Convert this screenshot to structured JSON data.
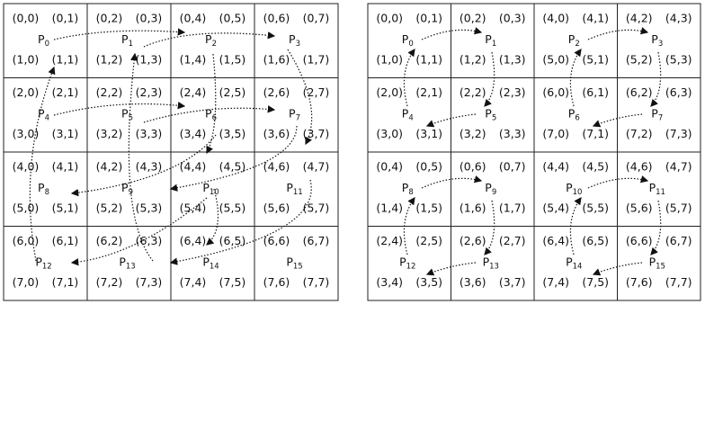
{
  "grids": [
    {
      "cells": [
        {
          "top": [
            "(0,0)",
            "(0,1)"
          ],
          "p": "P",
          "sub": "0",
          "bottom": [
            "(1,0)",
            "(1,1)"
          ]
        },
        {
          "top": [
            "(0,2)",
            "(0,3)"
          ],
          "p": "P",
          "sub": "1",
          "bottom": [
            "(1,2)",
            "(1,3)"
          ]
        },
        {
          "top": [
            "(0,4)",
            "(0,5)"
          ],
          "p": "P",
          "sub": "2",
          "bottom": [
            "(1,4)",
            "(1,5)"
          ]
        },
        {
          "top": [
            "(0,6)",
            "(0,7)"
          ],
          "p": "P",
          "sub": "3",
          "bottom": [
            "(1,6)",
            "(1,7)"
          ]
        },
        {
          "top": [
            "(2,0)",
            "(2,1)"
          ],
          "p": "P",
          "sub": "4",
          "bottom": [
            "(3,0)",
            "(3,1)"
          ]
        },
        {
          "top": [
            "(2,2)",
            "(2,3)"
          ],
          "p": "P",
          "sub": "5",
          "bottom": [
            "(3,2)",
            "(3,3)"
          ]
        },
        {
          "top": [
            "(2,4)",
            "(2,5)"
          ],
          "p": "P",
          "sub": "6",
          "bottom": [
            "(3,4)",
            "(3,5)"
          ]
        },
        {
          "top": [
            "(2,6)",
            "(2,7)"
          ],
          "p": "P",
          "sub": "7",
          "bottom": [
            "(3,6)",
            "(3,7)"
          ]
        },
        {
          "top": [
            "(4,0)",
            "(4,1)"
          ],
          "p": "P",
          "sub": "8",
          "bottom": [
            "(5,0)",
            "(5,1)"
          ]
        },
        {
          "top": [
            "(4,2)",
            "(4,3)"
          ],
          "p": "P",
          "sub": "9",
          "bottom": [
            "(5,2)",
            "(5,3)"
          ]
        },
        {
          "top": [
            "(4,4)",
            "(4,5)"
          ],
          "p": "P",
          "sub": "10",
          "bottom": [
            "(5,4)",
            "(5,5)"
          ]
        },
        {
          "top": [
            "(4,6)",
            "(4,7)"
          ],
          "p": "P",
          "sub": "11",
          "bottom": [
            "(5,6)",
            "(5,7)"
          ]
        },
        {
          "top": [
            "(6,0)",
            "(6,1)"
          ],
          "p": "P",
          "sub": "12",
          "bottom": [
            "(7,0)",
            "(7,1)"
          ]
        },
        {
          "top": [
            "(6,2)",
            "(6,3)"
          ],
          "p": "P",
          "sub": "13",
          "bottom": [
            "(7,2)",
            "(7,3)"
          ]
        },
        {
          "top": [
            "(6,4)",
            "(6,5)"
          ],
          "p": "P",
          "sub": "14",
          "bottom": [
            "(7,4)",
            "(7,5)"
          ]
        },
        {
          "top": [
            "(6,6)",
            "(6,7)"
          ],
          "p": "P",
          "sub": "15",
          "bottom": [
            "(7,6)",
            "(7,7)"
          ]
        }
      ]
    },
    {
      "cells": [
        {
          "top": [
            "(0,0)",
            "(0,1)"
          ],
          "p": "P",
          "sub": "0",
          "bottom": [
            "(1,0)",
            "(1,1)"
          ]
        },
        {
          "top": [
            "(0,2)",
            "(0,3)"
          ],
          "p": "P",
          "sub": "1",
          "bottom": [
            "(1,2)",
            "(1,3)"
          ]
        },
        {
          "top": [
            "(4,0)",
            "(4,1)"
          ],
          "p": "P",
          "sub": "2",
          "bottom": [
            "(5,0)",
            "(5,1)"
          ]
        },
        {
          "top": [
            "(4,2)",
            "(4,3)"
          ],
          "p": "P",
          "sub": "3",
          "bottom": [
            "(5,2)",
            "(5,3)"
          ]
        },
        {
          "top": [
            "(2,0)",
            "(2,1)"
          ],
          "p": "P",
          "sub": "4",
          "bottom": [
            "(3,0)",
            "(3,1)"
          ]
        },
        {
          "top": [
            "(2,2)",
            "(2,3)"
          ],
          "p": "P",
          "sub": "5",
          "bottom": [
            "(3,2)",
            "(3,3)"
          ]
        },
        {
          "top": [
            "(6,0)",
            "(6,1)"
          ],
          "p": "P",
          "sub": "6",
          "bottom": [
            "(7,0)",
            "(7,1)"
          ]
        },
        {
          "top": [
            "(6,2)",
            "(6,3)"
          ],
          "p": "P",
          "sub": "7",
          "bottom": [
            "(7,2)",
            "(7,3)"
          ]
        },
        {
          "top": [
            "(0,4)",
            "(0,5)"
          ],
          "p": "P",
          "sub": "8",
          "bottom": [
            "(1,4)",
            "(1,5)"
          ]
        },
        {
          "top": [
            "(0,6)",
            "(0,7)"
          ],
          "p": "P",
          "sub": "9",
          "bottom": [
            "(1,6)",
            "(1,7)"
          ]
        },
        {
          "top": [
            "(4,4)",
            "(4,5)"
          ],
          "p": "P",
          "sub": "10",
          "bottom": [
            "(5,4)",
            "(5,5)"
          ]
        },
        {
          "top": [
            "(4,6)",
            "(4,7)"
          ],
          "p": "P",
          "sub": "11",
          "bottom": [
            "(5,6)",
            "(5,7)"
          ]
        },
        {
          "top": [
            "(2,4)",
            "(2,5)"
          ],
          "p": "P",
          "sub": "12",
          "bottom": [
            "(3,4)",
            "(3,5)"
          ]
        },
        {
          "top": [
            "(2,6)",
            "(2,7)"
          ],
          "p": "P",
          "sub": "13",
          "bottom": [
            "(3,6)",
            "(3,7)"
          ]
        },
        {
          "top": [
            "(6,4)",
            "(6,5)"
          ],
          "p": "P",
          "sub": "14",
          "bottom": [
            "(7,4)",
            "(7,5)"
          ]
        },
        {
          "top": [
            "(6,6)",
            "(6,7)"
          ],
          "p": "P",
          "sub": "15",
          "bottom": [
            "(7,6)",
            "(7,7)"
          ]
        }
      ]
    }
  ]
}
